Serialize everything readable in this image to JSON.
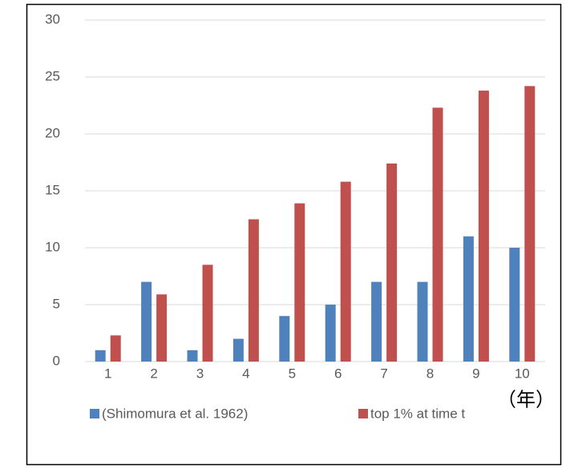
{
  "chart_data": {
    "type": "bar",
    "categories": [
      "1",
      "2",
      "3",
      "4",
      "5",
      "6",
      "7",
      "8",
      "9",
      "10"
    ],
    "series": [
      {
        "name": "(Shimomura et al. 1962)",
        "color": "#4f81bd",
        "values": [
          1,
          7,
          1,
          2,
          4,
          5,
          7,
          7,
          11,
          10
        ]
      },
      {
        "name": "top 1% at time t",
        "color": "#c0504d",
        "values": [
          2.3,
          5.9,
          8.5,
          12.5,
          13.9,
          15.8,
          17.4,
          22.3,
          23.8,
          24.2
        ]
      }
    ],
    "annotation": "（年）",
    "ylim": [
      0,
      30
    ],
    "yticks": [
      0,
      5,
      10,
      15,
      20,
      25,
      30
    ],
    "grid": true,
    "legend": "bottom"
  }
}
